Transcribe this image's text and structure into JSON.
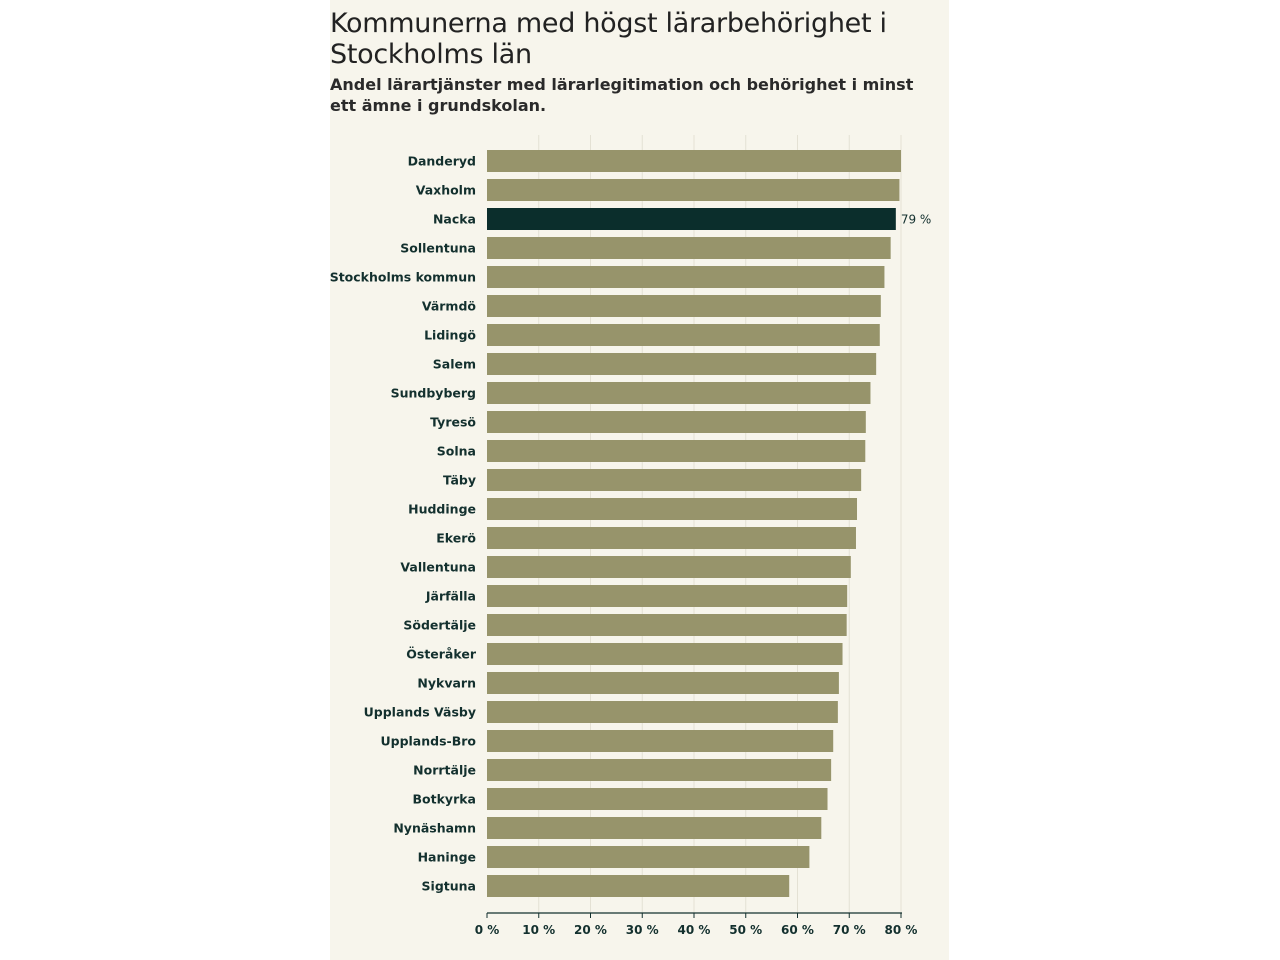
{
  "chart_data": {
    "type": "bar",
    "orientation": "horizontal",
    "title": "Kommunerna med högst lärarbehörighet i Stockholms län",
    "subtitle": "Andel lärartjänster med lärarlegitimation och behörighet i minst ett ämne i grundskolan.",
    "xlabel": "",
    "ylabel": "",
    "xlim": [
      0,
      80
    ],
    "xticks": [
      0,
      10,
      20,
      30,
      40,
      50,
      60,
      70,
      80
    ],
    "xtick_labels": [
      "0 %",
      "10 %",
      "20 %",
      "30 %",
      "40 %",
      "50 %",
      "60 %",
      "70 %",
      "80 %"
    ],
    "grid": true,
    "categories": [
      "Danderyd",
      "Vaxholm",
      "Nacka",
      "Sollentuna",
      "Stockholms kommun",
      "Värmdö",
      "Lidingö",
      "Salem",
      "Sundbyberg",
      "Tyresö",
      "Solna",
      "Täby",
      "Huddinge",
      "Ekerö",
      "Vallentuna",
      "Järfälla",
      "Södertälje",
      "Österåker",
      "Nykvarn",
      "Upplands Väsby",
      "Upplands-Bro",
      "Norrtälje",
      "Botkyrka",
      "Nynäshamn",
      "Haninge",
      "Sigtuna"
    ],
    "values": [
      80,
      79.7,
      79,
      78,
      76.8,
      76.1,
      75.9,
      75.2,
      74.1,
      73.2,
      73.1,
      72.3,
      71.5,
      71.3,
      70.3,
      69.6,
      69.5,
      68.7,
      68,
      67.8,
      66.9,
      66.5,
      65.8,
      64.6,
      62.3,
      58.4
    ],
    "highlight": {
      "category": "Nacka",
      "label": "79 %"
    },
    "colors": {
      "bar": "#97946b",
      "highlight": "#0b2e2c",
      "grid": "#e4e1d4",
      "axis": "#13302e",
      "background": "#f7f5ec"
    }
  }
}
